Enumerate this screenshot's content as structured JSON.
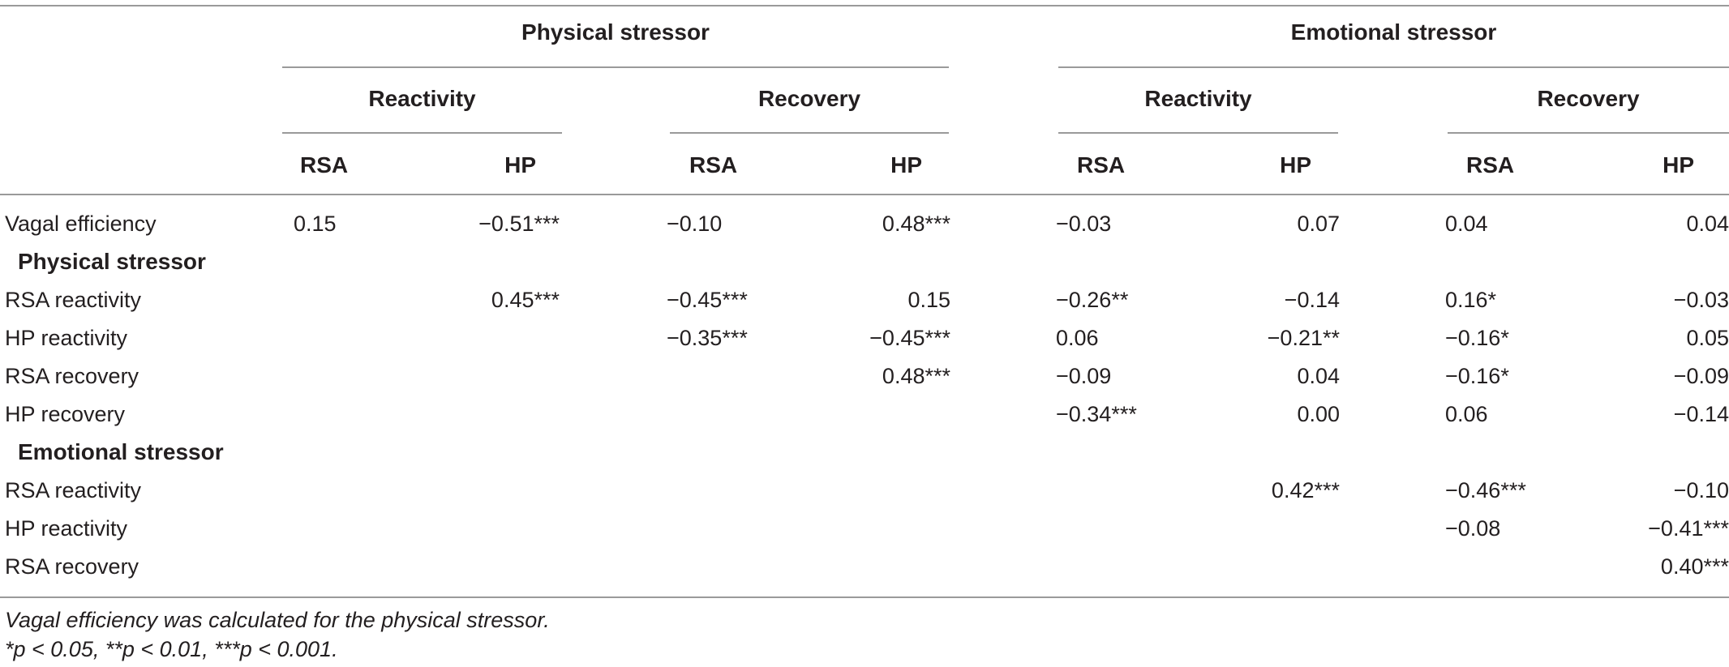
{
  "groups": {
    "physical": "Physical stressor",
    "emotional": "Emotional stressor"
  },
  "subgroups": {
    "phys_reactivity": "Reactivity",
    "phys_recovery": "Recovery",
    "emo_reactivity": "Reactivity",
    "emo_recovery": "Recovery"
  },
  "columns": [
    "RSA",
    "HP",
    "RSA",
    "HP",
    "RSA",
    "HP",
    "RSA",
    "HP"
  ],
  "rows": [
    {
      "label": "Vagal efficiency",
      "cells": [
        "0.15",
        "−0.51***",
        "−0.10",
        "0.48***",
        "−0.03",
        "0.07",
        "0.04",
        "0.04"
      ]
    },
    {
      "section": "Physical stressor"
    },
    {
      "label": "RSA reactivity",
      "cells": [
        "",
        "0.45***",
        "−0.45***",
        "0.15",
        "−0.26**",
        "−0.14",
        "0.16*",
        "−0.03"
      ]
    },
    {
      "label": "HP reactivity",
      "cells": [
        "",
        "",
        "−0.35***",
        "−0.45***",
        "0.06",
        "−0.21**",
        "−0.16*",
        "0.05"
      ]
    },
    {
      "label": "RSA recovery",
      "cells": [
        "",
        "",
        "",
        "0.48***",
        "−0.09",
        "0.04",
        "−0.16*",
        "−0.09"
      ]
    },
    {
      "label": "HP recovery",
      "cells": [
        "",
        "",
        "",
        "",
        "−0.34***",
        "0.00",
        "0.06",
        "−0.14"
      ]
    },
    {
      "section": "Emotional stressor"
    },
    {
      "label": "RSA reactivity",
      "cells": [
        "",
        "",
        "",
        "",
        "",
        "0.42***",
        "−0.46***",
        "−0.10"
      ]
    },
    {
      "label": "HP reactivity",
      "cells": [
        "",
        "",
        "",
        "",
        "",
        "",
        "−0.08",
        "−0.41***"
      ]
    },
    {
      "label": "RSA recovery",
      "cells": [
        "",
        "",
        "",
        "",
        "",
        "",
        "",
        "0.40***"
      ]
    }
  ],
  "footnotes": [
    "Vagal efficiency was calculated for the physical stressor.",
    "*p < 0.05, **p < 0.01, ***p < 0.001."
  ]
}
